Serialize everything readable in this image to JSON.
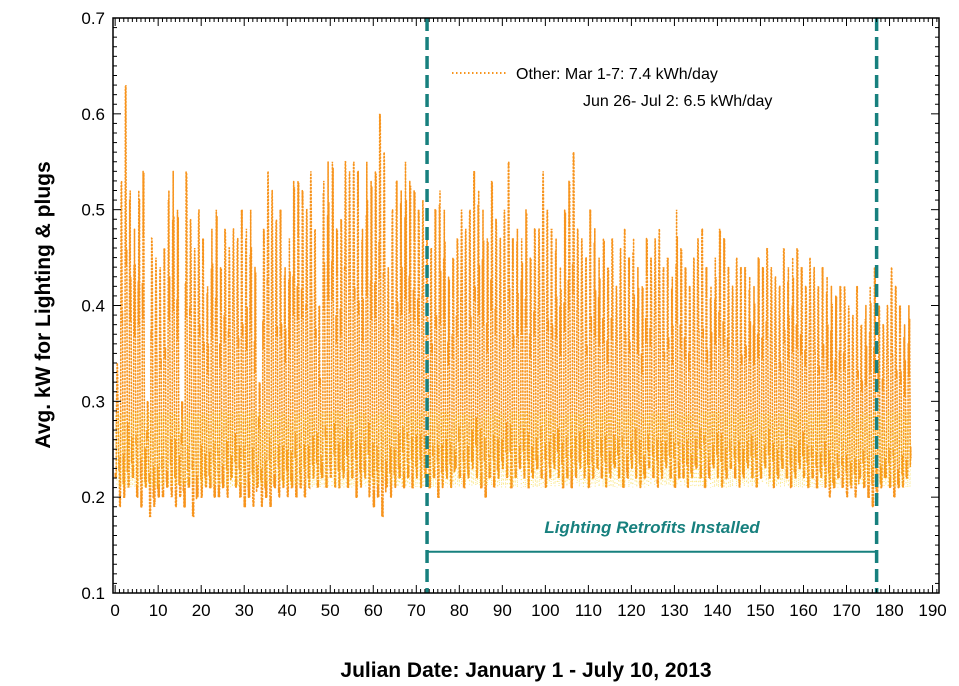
{
  "chart_data": {
    "type": "line",
    "title": "",
    "xlabel": "Julian Date: January 1 - July 10, 2013",
    "ylabel": "Avg. kW for Lighting & plugs",
    "xlim": [
      -0.5,
      191.5
    ],
    "ylim": [
      0.1,
      0.7
    ],
    "x_ticks": [
      0,
      10,
      20,
      30,
      40,
      50,
      60,
      70,
      80,
      90,
      100,
      110,
      120,
      130,
      140,
      150,
      160,
      170,
      180,
      190
    ],
    "y_ticks": [
      "0.1",
      "0.2",
      "0.3",
      "0.4",
      "0.5",
      "0.6",
      "0.7"
    ],
    "grid": false,
    "series": [
      {
        "name": "Other",
        "color": "#f7941d",
        "style": "dotted",
        "daily_max": [
          0.34,
          0.53,
          0.63,
          0.52,
          0.48,
          0.52,
          0.54,
          0.3,
          0.47,
          0.45,
          0.44,
          0.46,
          0.52,
          0.54,
          0.5,
          0.3,
          0.54,
          0.49,
          0.46,
          0.5,
          0.47,
          0.42,
          0.48,
          0.5,
          0.44,
          0.48,
          0.46,
          0.48,
          0.47,
          0.5,
          0.48,
          0.5,
          0.44,
          0.32,
          0.48,
          0.54,
          0.52,
          0.49,
          0.5,
          0.44,
          0.47,
          0.53,
          0.53,
          0.52,
          0.5,
          0.54,
          0.48,
          0.4,
          0.53,
          0.55,
          0.55,
          0.48,
          0.49,
          0.55,
          0.54,
          0.55,
          0.54,
          0.48,
          0.55,
          0.53,
          0.54,
          0.6,
          0.56,
          0.44,
          0.5,
          0.53,
          0.52,
          0.55,
          0.53,
          0.52,
          0.5,
          0.51,
          0.48,
          0.46,
          0.5,
          0.52,
          0.5,
          0.43,
          0.45,
          0.47,
          0.5,
          0.48,
          0.5,
          0.54,
          0.52,
          0.5,
          0.47,
          0.53,
          0.49,
          0.47,
          0.5,
          0.55,
          0.47,
          0.48,
          0.47,
          0.5,
          0.45,
          0.48,
          0.48,
          0.54,
          0.5,
          0.48,
          0.47,
          0.44,
          0.5,
          0.53,
          0.56,
          0.48,
          0.47,
          0.45,
          0.5,
          0.48,
          0.45,
          0.47,
          0.44,
          0.47,
          0.42,
          0.46,
          0.48,
          0.45,
          0.47,
          0.44,
          0.42,
          0.47,
          0.45,
          0.47,
          0.48,
          0.44,
          0.45,
          0.43,
          0.5,
          0.46,
          0.44,
          0.42,
          0.45,
          0.47,
          0.48,
          0.44,
          0.42,
          0.45,
          0.48,
          0.47,
          0.44,
          0.42,
          0.45,
          0.44,
          0.44,
          0.43,
          0.42,
          0.45,
          0.44,
          0.46,
          0.44,
          0.43,
          0.42,
          0.46,
          0.44,
          0.45,
          0.46,
          0.44,
          0.42,
          0.45,
          0.44,
          0.42,
          0.44,
          0.43,
          0.42,
          0.41,
          0.42,
          0.42,
          0.4,
          0.39,
          0.42,
          0.38,
          0.4,
          0.42,
          0.44,
          0.4,
          0.38,
          0.4,
          0.44,
          0.42,
          0.4,
          0.38,
          0.4
        ],
        "daily_min": [
          0.22,
          0.19,
          0.2,
          0.21,
          0.22,
          0.2,
          0.19,
          0.21,
          0.18,
          0.19,
          0.2,
          0.2,
          0.21,
          0.2,
          0.19,
          0.2,
          0.19,
          0.21,
          0.18,
          0.2,
          0.2,
          0.21,
          0.21,
          0.2,
          0.2,
          0.21,
          0.2,
          0.22,
          0.21,
          0.2,
          0.19,
          0.2,
          0.19,
          0.21,
          0.19,
          0.2,
          0.19,
          0.21,
          0.2,
          0.21,
          0.2,
          0.21,
          0.2,
          0.21,
          0.2,
          0.21,
          0.22,
          0.21,
          0.22,
          0.21,
          0.22,
          0.21,
          0.21,
          0.22,
          0.21,
          0.22,
          0.2,
          0.21,
          0.22,
          0.2,
          0.19,
          0.2,
          0.18,
          0.21,
          0.2,
          0.21,
          0.22,
          0.21,
          0.22,
          0.21,
          0.22,
          0.21,
          0.22,
          0.21,
          0.22,
          0.2,
          0.21,
          0.22,
          0.21,
          0.23,
          0.22,
          0.21,
          0.22,
          0.23,
          0.22,
          0.21,
          0.2,
          0.22,
          0.21,
          0.22,
          0.23,
          0.22,
          0.21,
          0.22,
          0.23,
          0.22,
          0.21,
          0.22,
          0.23,
          0.22,
          0.21,
          0.22,
          0.23,
          0.22,
          0.21,
          0.22,
          0.21,
          0.22,
          0.23,
          0.22,
          0.21,
          0.22,
          0.23,
          0.22,
          0.21,
          0.22,
          0.23,
          0.22,
          0.21,
          0.22,
          0.23,
          0.22,
          0.21,
          0.22,
          0.23,
          0.22,
          0.21,
          0.22,
          0.23,
          0.22,
          0.21,
          0.22,
          0.22,
          0.21,
          0.22,
          0.23,
          0.22,
          0.21,
          0.22,
          0.23,
          0.22,
          0.21,
          0.22,
          0.23,
          0.22,
          0.21,
          0.22,
          0.23,
          0.22,
          0.21,
          0.22,
          0.23,
          0.22,
          0.21,
          0.22,
          0.23,
          0.22,
          0.21,
          0.22,
          0.23,
          0.22,
          0.21,
          0.22,
          0.21,
          0.22,
          0.21,
          0.2,
          0.21,
          0.22,
          0.21,
          0.2,
          0.21,
          0.2,
          0.22,
          0.21,
          0.2,
          0.19,
          0.2,
          0.21,
          0.22,
          0.21,
          0.2,
          0.21,
          0.21,
          0.22
        ]
      },
      {
        "name": "",
        "color": "#f5d21a",
        "style": "dotted",
        "approx_level": [
          0.27,
          0.27
        ]
      }
    ],
    "legend": {
      "position": "top-right",
      "line1": "Other: Mar 1-7: 7.4 kWh/day",
      "line2": "Jun 26- Jul 2: 6.5 kWh/day"
    },
    "vertical_markers": [
      72.5,
      177
    ],
    "marker_color": "#17807e",
    "annotation": {
      "text": "Lighting Retrofits Installed",
      "x_start": 72.5,
      "x_end": 177,
      "y_line": 0.143,
      "color": "#17807e"
    }
  }
}
